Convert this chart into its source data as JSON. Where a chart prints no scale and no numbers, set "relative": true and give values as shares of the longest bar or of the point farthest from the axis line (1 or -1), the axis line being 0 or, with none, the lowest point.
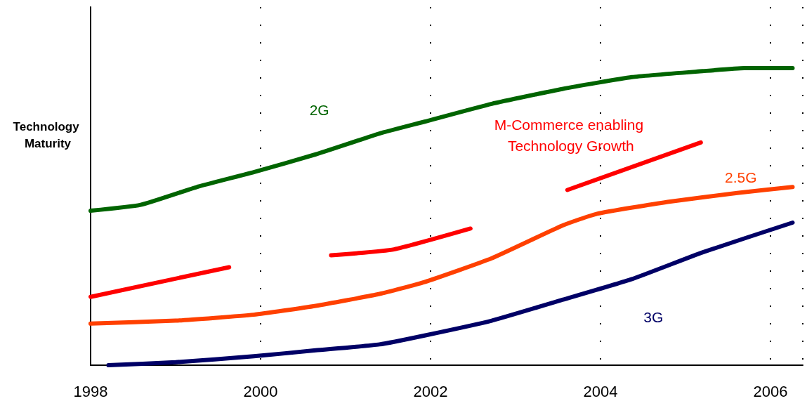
{
  "chart_data": {
    "type": "line",
    "relative": true,
    "ylabel": "Technology Maturity",
    "xlim": [
      1998,
      2006.38
    ],
    "xticks": [
      1998,
      2000,
      2002,
      2004,
      2006
    ],
    "grid": "x",
    "marker": "none",
    "line_style": "solid",
    "series": [
      {
        "name": "2G",
        "color": "#006400",
        "x": [
          1998,
          1998.59,
          1999.25,
          1999.92,
          2000.65,
          2001.4,
          2001.93,
          2002.72,
          2003.55,
          2004.37,
          2005.2,
          2005.69,
          2006.26
        ],
        "values": [
          0.52,
          0.54,
          0.6,
          0.65,
          0.71,
          0.78,
          0.82,
          0.88,
          0.93,
          0.97,
          0.99,
          1,
          1
        ]
      },
      {
        "name": "M-Commerce enabling Technology Growth",
        "color": "#ff0000",
        "x": [
          1998,
          1999.63,
          2000.2,
          2000.83,
          2001.57,
          2002.47,
          2003,
          2003.61,
          2005.18
        ],
        "values": [
          0.23,
          0.33,
          null,
          0.37,
          0.39,
          0.46,
          null,
          0.59,
          0.75
        ]
      },
      {
        "name": "2.5G",
        "color": "#ff4000",
        "x": [
          1998,
          1999,
          1999.92,
          2000.65,
          2001.4,
          2001.93,
          2002.72,
          2003.55,
          2003.96,
          2004.79,
          2005.61,
          2006.26
        ],
        "values": [
          0.14,
          0.15,
          0.17,
          0.2,
          0.24,
          0.28,
          0.36,
          0.47,
          0.51,
          0.55,
          0.58,
          0.6
        ]
      },
      {
        "name": "3G",
        "color": "#000066",
        "x": [
          1998.21,
          1999,
          1999.92,
          2000.65,
          2001.4,
          2001.93,
          2002.72,
          2003.55,
          2004.37,
          2005.2,
          2006.26
        ],
        "values": [
          0,
          0.01,
          0.03,
          0.05,
          0.07,
          0.1,
          0.15,
          0.22,
          0.29,
          0.38,
          0.48
        ]
      }
    ]
  }
}
